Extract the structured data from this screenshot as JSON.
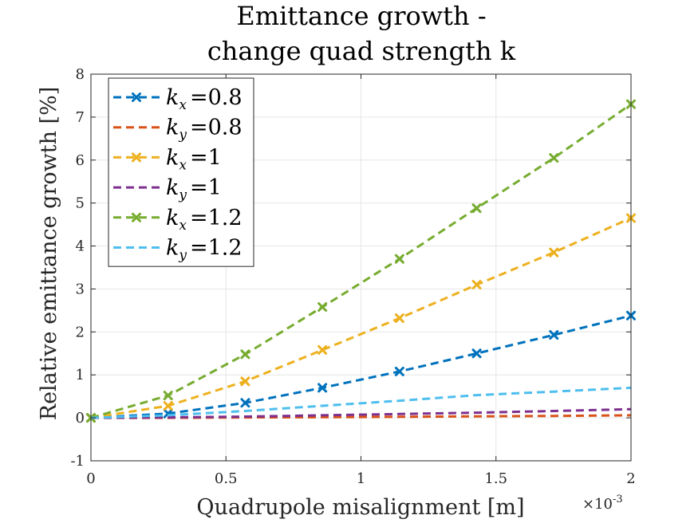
{
  "chart_data": {
    "type": "line",
    "title": [
      "Emittance growth -",
      "change quad strength k"
    ],
    "xlabel": "Quadrupole misalignment [m]",
    "ylabel": "Relative emittance growth [%]",
    "x_exponent_label": "×10",
    "x_exponent_power": "-3",
    "xlim": [
      0,
      0.002
    ],
    "ylim": [
      -1,
      8
    ],
    "xticks": [
      0,
      0.0005,
      0.001,
      0.0015,
      0.002
    ],
    "xtick_labels": [
      "0",
      "0.5",
      "1",
      "1.5",
      "2"
    ],
    "yticks": [
      -1,
      0,
      1,
      2,
      3,
      4,
      5,
      6,
      7,
      8
    ],
    "ytick_labels": [
      "-1",
      "0",
      "1",
      "2",
      "3",
      "4",
      "5",
      "6",
      "7",
      "8"
    ],
    "grid": true,
    "legend_position": "top-left",
    "x": [
      0,
      0.0002857,
      0.0005714,
      0.0008571,
      0.0011429,
      0.0014286,
      0.0017143,
      0.002
    ],
    "series": [
      {
        "name": "k_x =0.8",
        "var": "k",
        "sub": "x",
        "val": "=0.8",
        "color": "#0072BD",
        "marker": "x",
        "values": [
          0,
          0.1,
          0.35,
          0.7,
          1.08,
          1.5,
          1.93,
          2.38
        ]
      },
      {
        "name": "k_y =0.8",
        "var": "k",
        "sub": "y",
        "val": "=0.8",
        "color": "#D95319",
        "marker": "none",
        "values": [
          0,
          0.0,
          0.01,
          0.015,
          0.025,
          0.035,
          0.045,
          0.06
        ]
      },
      {
        "name": "k_x =1",
        "var": "k",
        "sub": "x",
        "val": "=1",
        "color": "#EDB120",
        "marker": "x",
        "values": [
          0,
          0.28,
          0.85,
          1.58,
          2.32,
          3.1,
          3.85,
          4.65
        ]
      },
      {
        "name": "k_y =1",
        "var": "k",
        "sub": "y",
        "val": "=1",
        "color": "#7E2F8E",
        "marker": "none",
        "values": [
          0,
          0.01,
          0.03,
          0.06,
          0.09,
          0.12,
          0.16,
          0.2
        ]
      },
      {
        "name": "k_x =1.2",
        "var": "k",
        "sub": "x",
        "val": "=1.2",
        "color": "#77AC30",
        "marker": "x",
        "values": [
          0,
          0.52,
          1.48,
          2.58,
          3.7,
          4.88,
          6.05,
          7.3
        ]
      },
      {
        "name": "k_y =1.2",
        "var": "k",
        "sub": "y",
        "val": "=1.2",
        "color": "#4DBEEE",
        "marker": "none",
        "values": [
          0,
          0.06,
          0.16,
          0.28,
          0.4,
          0.53,
          0.61,
          0.7
        ]
      }
    ]
  }
}
